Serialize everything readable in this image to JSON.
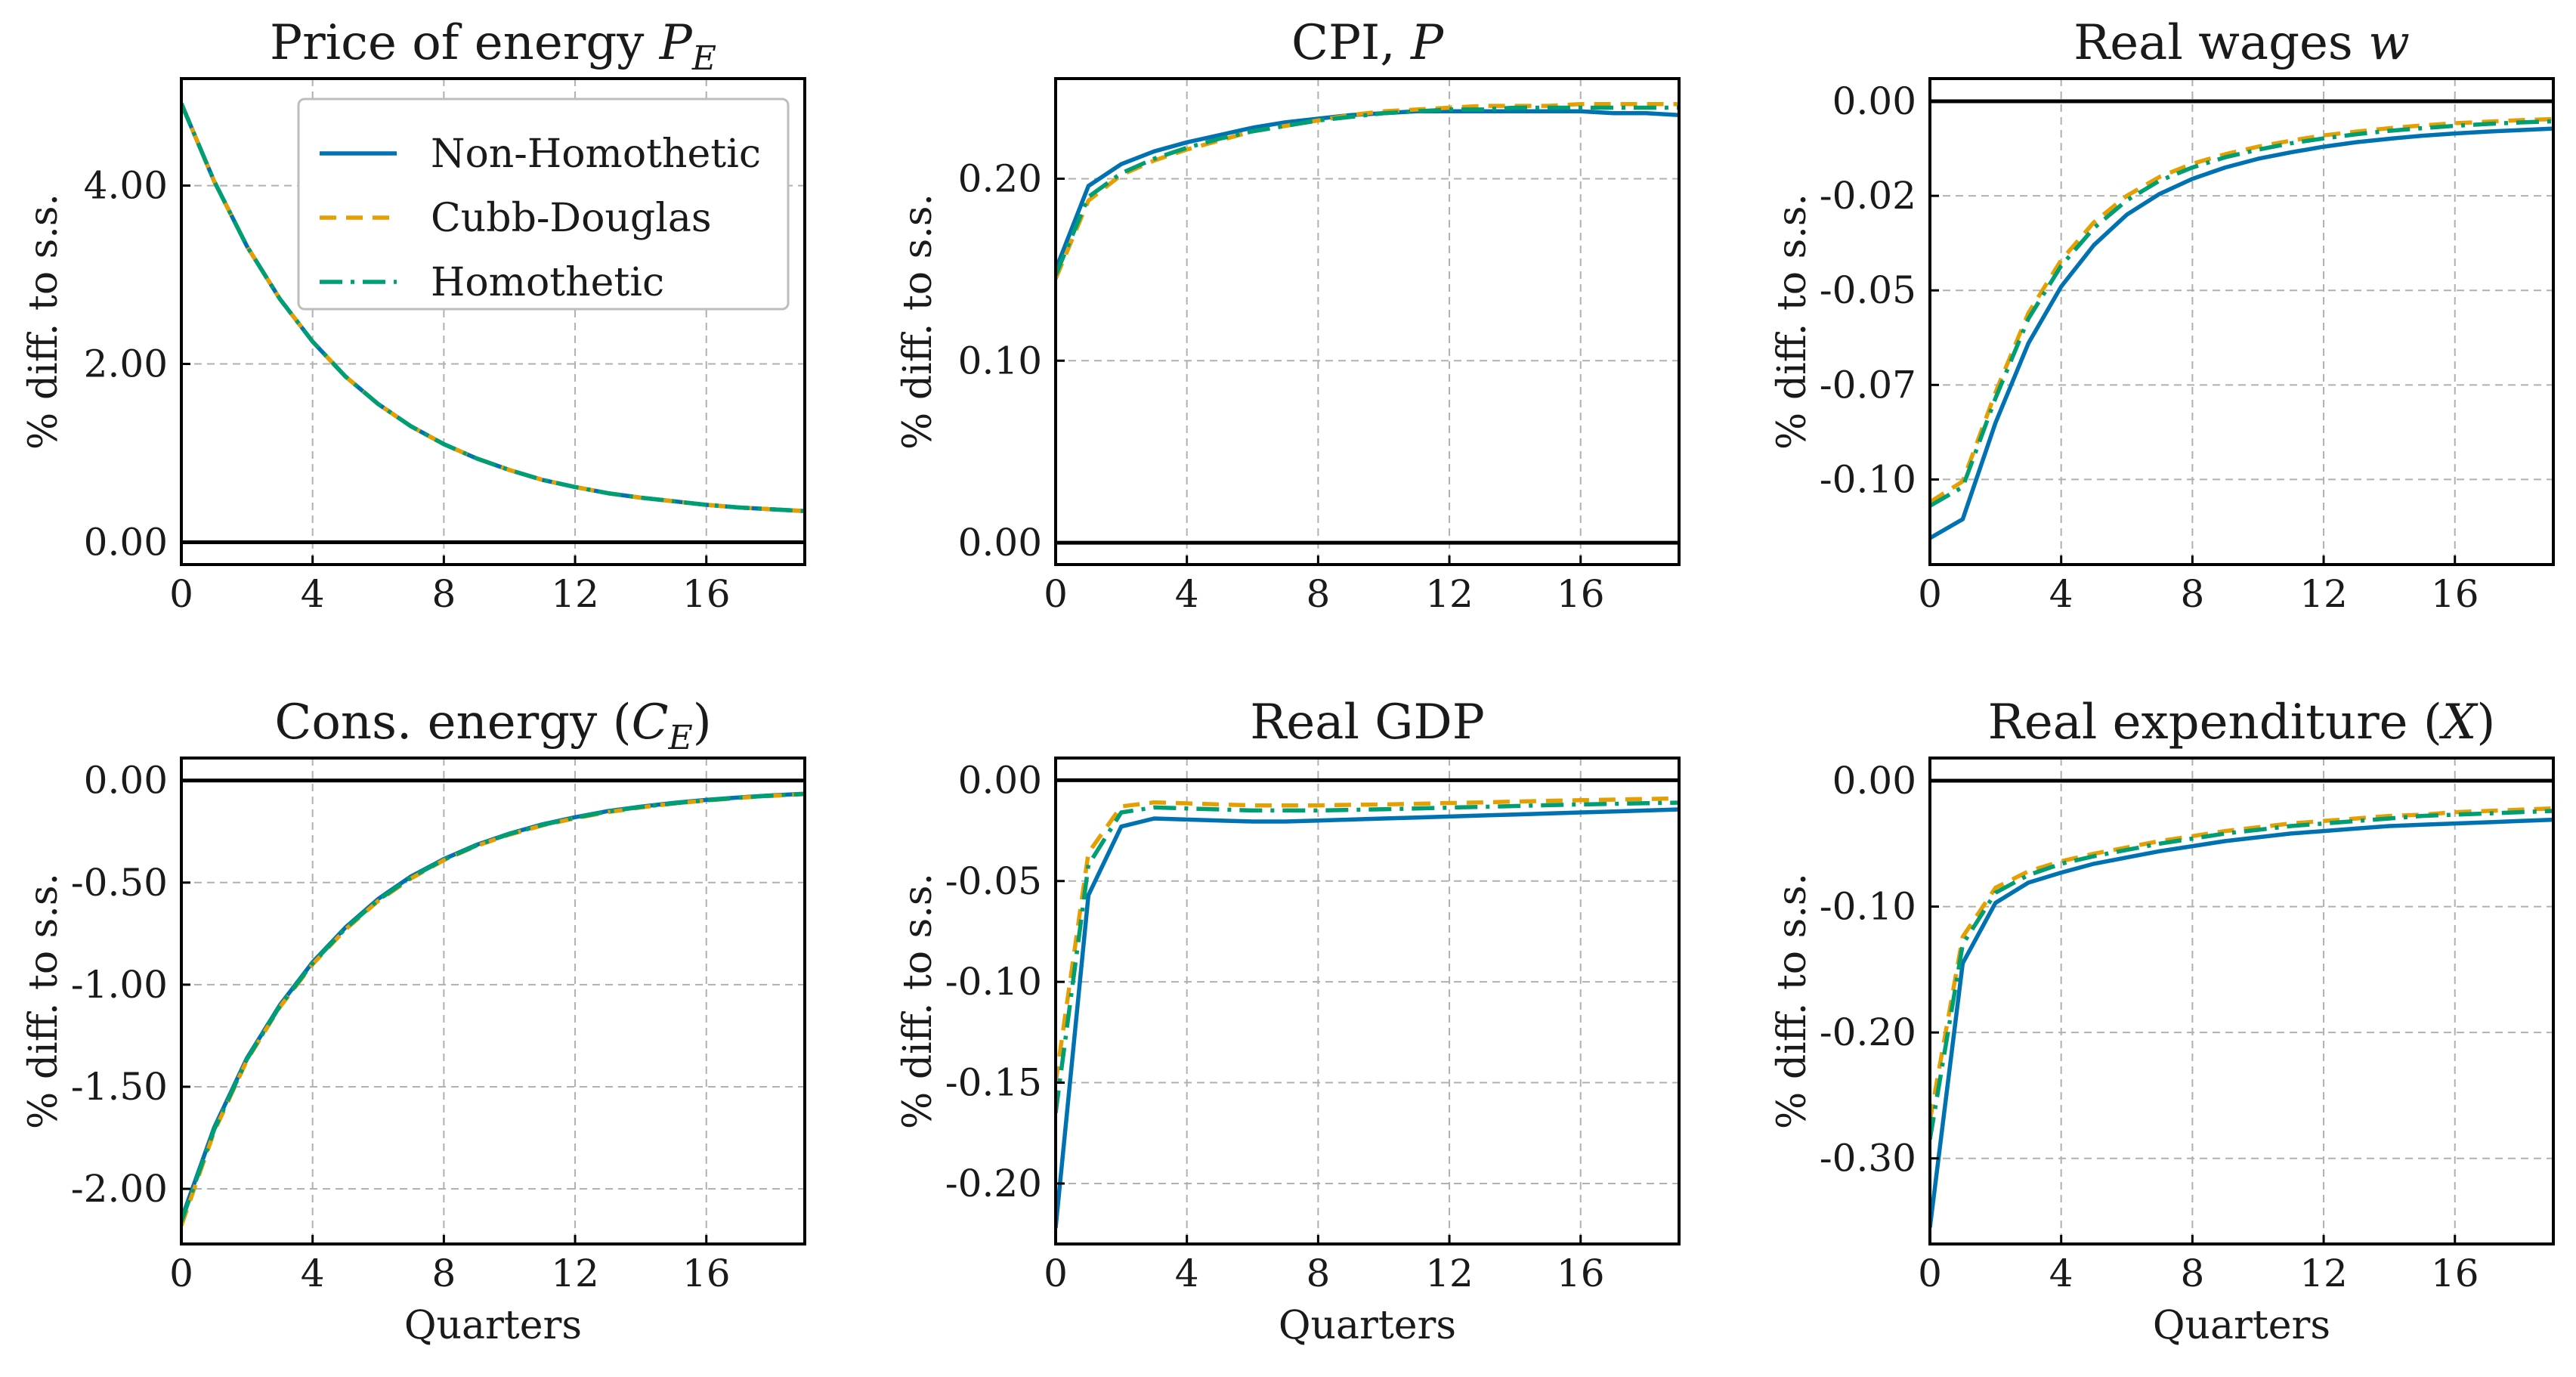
{
  "colors": {
    "non_homothetic": "#0072B2",
    "cobb_douglas": "#E69F00",
    "homothetic": "#009E73",
    "zero_line": "#000000",
    "grid": "#b0b0b0"
  },
  "legend": {
    "placement": "top-right of first panel",
    "entries": [
      {
        "label": "Non-Homothetic",
        "color": "#0072B2",
        "dash": "solid"
      },
      {
        "label": "Cubb-Douglas",
        "color": "#E69F00",
        "dash": "dashed"
      },
      {
        "label": "Homothetic",
        "color": "#009E73",
        "dash": "dashdot"
      }
    ]
  },
  "chart_data": [
    {
      "type": "line",
      "title": "Price of energy ",
      "title_math": "P",
      "title_sub": "E",
      "title_suffix": "",
      "xlabel": "",
      "ylabel": "% diff. to s.s.",
      "xlim": [
        0,
        19
      ],
      "ylim": [
        -0.25,
        5.2
      ],
      "xticks": [
        0,
        4,
        8,
        12,
        16
      ],
      "yticks": [
        0,
        2,
        4
      ],
      "ytick_labels": [
        "0.00",
        "2.00",
        "4.00"
      ],
      "grid": true,
      "zero_line": true,
      "x": [
        0,
        1,
        2,
        3,
        4,
        5,
        6,
        7,
        8,
        9,
        10,
        11,
        12,
        13,
        14,
        15,
        16,
        17,
        18,
        19
      ],
      "series": [
        {
          "name": "Non-Homothetic",
          "values": [
            4.92,
            4.05,
            3.32,
            2.73,
            2.25,
            1.86,
            1.55,
            1.3,
            1.1,
            0.94,
            0.81,
            0.7,
            0.62,
            0.55,
            0.5,
            0.46,
            0.42,
            0.39,
            0.37,
            0.35
          ]
        },
        {
          "name": "Cubb-Douglas",
          "values": [
            4.92,
            4.05,
            3.32,
            2.73,
            2.25,
            1.86,
            1.55,
            1.3,
            1.1,
            0.94,
            0.81,
            0.7,
            0.62,
            0.55,
            0.5,
            0.46,
            0.42,
            0.39,
            0.37,
            0.35
          ]
        },
        {
          "name": "Homothetic",
          "values": [
            4.92,
            4.05,
            3.32,
            2.73,
            2.25,
            1.86,
            1.55,
            1.3,
            1.1,
            0.94,
            0.81,
            0.7,
            0.62,
            0.55,
            0.5,
            0.46,
            0.42,
            0.39,
            0.37,
            0.35
          ]
        }
      ]
    },
    {
      "type": "line",
      "title": "CPI, ",
      "title_math": "P",
      "title_sub": "",
      "title_suffix": "",
      "xlabel": "",
      "ylabel": "% diff. to s.s.",
      "xlim": [
        0,
        19
      ],
      "ylim": [
        -0.012,
        0.255
      ],
      "xticks": [
        0,
        4,
        8,
        12,
        16
      ],
      "yticks": [
        0,
        0.1,
        0.2
      ],
      "ytick_labels": [
        "0.00",
        "0.10",
        "0.20"
      ],
      "grid": true,
      "zero_line": true,
      "x": [
        0,
        1,
        2,
        3,
        4,
        5,
        6,
        7,
        8,
        9,
        10,
        11,
        12,
        13,
        14,
        15,
        16,
        17,
        18,
        19
      ],
      "series": [
        {
          "name": "Non-Homothetic",
          "values": [
            0.15,
            0.196,
            0.208,
            0.215,
            0.22,
            0.224,
            0.228,
            0.231,
            0.233,
            0.235,
            0.236,
            0.237,
            0.237,
            0.237,
            0.237,
            0.237,
            0.237,
            0.236,
            0.236,
            0.235
          ]
        },
        {
          "name": "Cubb-Douglas",
          "values": [
            0.145,
            0.188,
            0.202,
            0.21,
            0.216,
            0.221,
            0.226,
            0.229,
            0.232,
            0.235,
            0.237,
            0.238,
            0.239,
            0.24,
            0.24,
            0.24,
            0.241,
            0.241,
            0.241,
            0.241
          ]
        },
        {
          "name": "Homothetic",
          "values": [
            0.147,
            0.19,
            0.203,
            0.211,
            0.217,
            0.222,
            0.226,
            0.229,
            0.232,
            0.234,
            0.236,
            0.237,
            0.238,
            0.238,
            0.239,
            0.239,
            0.239,
            0.239,
            0.239,
            0.239
          ]
        }
      ]
    },
    {
      "type": "line",
      "title": "Real wages ",
      "title_math": "w",
      "title_sub": "",
      "title_suffix": "",
      "xlabel": "",
      "ylabel": "% diff. to s.s.",
      "xlim": [
        0,
        19
      ],
      "ylim": [
        -0.1225,
        0.006
      ],
      "xticks": [
        0,
        4,
        8,
        12,
        16
      ],
      "yticks": [
        0,
        -0.025,
        -0.05,
        -0.075,
        -0.1
      ],
      "ytick_labels": [
        "0.00",
        "-0.02",
        "-0.05",
        "-0.07",
        "-0.10"
      ],
      "grid": true,
      "zero_line": true,
      "x": [
        0,
        1,
        2,
        3,
        4,
        5,
        6,
        7,
        8,
        9,
        10,
        11,
        12,
        13,
        14,
        15,
        16,
        17,
        18,
        19
      ],
      "series": [
        {
          "name": "Non-Homothetic",
          "values": [
            -0.1155,
            -0.1105,
            -0.085,
            -0.064,
            -0.049,
            -0.038,
            -0.03,
            -0.0245,
            -0.0205,
            -0.0175,
            -0.0152,
            -0.0135,
            -0.012,
            -0.0108,
            -0.0099,
            -0.0091,
            -0.0085,
            -0.008,
            -0.0076,
            -0.0072
          ]
        },
        {
          "name": "Cubb-Douglas",
          "values": [
            -0.106,
            -0.1005,
            -0.077,
            -0.056,
            -0.042,
            -0.032,
            -0.025,
            -0.02,
            -0.0165,
            -0.014,
            -0.012,
            -0.0104,
            -0.009,
            -0.008,
            -0.0071,
            -0.0064,
            -0.0058,
            -0.0054,
            -0.005,
            -0.0047
          ]
        },
        {
          "name": "Homothetic",
          "values": [
            -0.107,
            -0.102,
            -0.0785,
            -0.0575,
            -0.0435,
            -0.0335,
            -0.0262,
            -0.021,
            -0.0175,
            -0.0148,
            -0.0128,
            -0.0111,
            -0.0098,
            -0.0087,
            -0.0078,
            -0.0071,
            -0.0065,
            -0.006,
            -0.0056,
            -0.0053
          ]
        }
      ]
    },
    {
      "type": "line",
      "title": "Cons. energy (",
      "title_math": "C",
      "title_sub": "E",
      "title_suffix": ")",
      "xlabel": "Quarters",
      "ylabel": "% diff. to s.s.",
      "xlim": [
        0,
        19
      ],
      "ylim": [
        -2.27,
        0.11
      ],
      "xticks": [
        0,
        4,
        8,
        12,
        16
      ],
      "yticks": [
        0,
        -0.5,
        -1,
        -1.5,
        -2
      ],
      "ytick_labels": [
        "0.00",
        "-0.50",
        "-1.00",
        "-1.50",
        "-2.00"
      ],
      "grid": true,
      "zero_line": true,
      "x": [
        0,
        1,
        2,
        3,
        4,
        5,
        6,
        7,
        8,
        9,
        10,
        11,
        12,
        13,
        14,
        15,
        16,
        17,
        18,
        19
      ],
      "series": [
        {
          "name": "Non-Homothetic",
          "values": [
            -2.15,
            -1.7,
            -1.36,
            -1.1,
            -0.89,
            -0.72,
            -0.58,
            -0.47,
            -0.385,
            -0.315,
            -0.26,
            -0.215,
            -0.18,
            -0.15,
            -0.128,
            -0.11,
            -0.095,
            -0.083,
            -0.073,
            -0.065
          ]
        },
        {
          "name": "Cubb-Douglas",
          "values": [
            -2.18,
            -1.72,
            -1.37,
            -1.11,
            -0.9,
            -0.73,
            -0.59,
            -0.48,
            -0.39,
            -0.32,
            -0.265,
            -0.22,
            -0.185,
            -0.155,
            -0.132,
            -0.113,
            -0.098,
            -0.085,
            -0.075,
            -0.067
          ]
        },
        {
          "name": "Homothetic",
          "values": [
            -2.16,
            -1.71,
            -1.365,
            -1.105,
            -0.895,
            -0.725,
            -0.585,
            -0.475,
            -0.388,
            -0.318,
            -0.262,
            -0.218,
            -0.182,
            -0.152,
            -0.13,
            -0.112,
            -0.097,
            -0.084,
            -0.074,
            -0.066
          ]
        }
      ]
    },
    {
      "type": "line",
      "title": "Real GDP",
      "title_math": "",
      "title_sub": "",
      "title_suffix": "",
      "xlabel": "Quarters",
      "ylabel": "% diff. to s.s.",
      "xlim": [
        0,
        19
      ],
      "ylim": [
        -0.23,
        0.011
      ],
      "xticks": [
        0,
        4,
        8,
        12,
        16
      ],
      "yticks": [
        0,
        -0.05,
        -0.1,
        -0.15,
        -0.2
      ],
      "ytick_labels": [
        "0.00",
        "-0.05",
        "-0.10",
        "-0.15",
        "-0.20"
      ],
      "grid": true,
      "zero_line": true,
      "x": [
        0,
        1,
        2,
        3,
        4,
        5,
        6,
        7,
        8,
        9,
        10,
        11,
        12,
        13,
        14,
        15,
        16,
        17,
        18,
        19
      ],
      "series": [
        {
          "name": "Non-Homothetic",
          "values": [
            -0.222,
            -0.057,
            -0.023,
            -0.019,
            -0.0195,
            -0.02,
            -0.0205,
            -0.0205,
            -0.02,
            -0.0195,
            -0.019,
            -0.0185,
            -0.018,
            -0.0175,
            -0.017,
            -0.0165,
            -0.016,
            -0.0155,
            -0.015,
            -0.0145
          ]
        },
        {
          "name": "Cubb-Douglas",
          "values": [
            -0.15,
            -0.036,
            -0.013,
            -0.011,
            -0.0115,
            -0.012,
            -0.0125,
            -0.0125,
            -0.0125,
            -0.0122,
            -0.012,
            -0.0117,
            -0.0113,
            -0.011,
            -0.0106,
            -0.0102,
            -0.0099,
            -0.0096,
            -0.0093,
            -0.009
          ]
        },
        {
          "name": "Homothetic",
          "values": [
            -0.165,
            -0.042,
            -0.016,
            -0.0135,
            -0.014,
            -0.0145,
            -0.015,
            -0.015,
            -0.015,
            -0.0147,
            -0.0144,
            -0.014,
            -0.0136,
            -0.0132,
            -0.0128,
            -0.0124,
            -0.012,
            -0.0117,
            -0.0114,
            -0.0111
          ]
        }
      ]
    },
    {
      "type": "line",
      "title": "Real expenditure (",
      "title_math": "X",
      "title_sub": "",
      "title_suffix": ")",
      "xlabel": "Quarters",
      "ylabel": "% diff. to s.s.",
      "xlim": [
        0,
        19
      ],
      "ylim": [
        -0.368,
        0.018
      ],
      "xticks": [
        0,
        4,
        8,
        12,
        16
      ],
      "yticks": [
        0,
        -0.1,
        -0.2,
        -0.3
      ],
      "ytick_labels": [
        "0.00",
        "-0.10",
        "-0.20",
        "-0.30"
      ],
      "grid": true,
      "zero_line": true,
      "x": [
        0,
        1,
        2,
        3,
        4,
        5,
        6,
        7,
        8,
        9,
        10,
        11,
        12,
        13,
        14,
        15,
        16,
        17,
        18,
        19
      ],
      "series": [
        {
          "name": "Non-Homothetic",
          "values": [
            -0.355,
            -0.145,
            -0.097,
            -0.081,
            -0.073,
            -0.066,
            -0.061,
            -0.056,
            -0.052,
            -0.048,
            -0.045,
            -0.042,
            -0.04,
            -0.038,
            -0.036,
            -0.035,
            -0.034,
            -0.033,
            -0.032,
            -0.031
          ]
        },
        {
          "name": "Cubb-Douglas",
          "values": [
            -0.27,
            -0.124,
            -0.085,
            -0.072,
            -0.064,
            -0.058,
            -0.053,
            -0.048,
            -0.044,
            -0.04,
            -0.037,
            -0.034,
            -0.032,
            -0.03,
            -0.028,
            -0.027,
            -0.025,
            -0.024,
            -0.023,
            -0.022
          ]
        },
        {
          "name": "Homothetic",
          "values": [
            -0.285,
            -0.13,
            -0.089,
            -0.075,
            -0.066,
            -0.06,
            -0.055,
            -0.05,
            -0.046,
            -0.042,
            -0.039,
            -0.036,
            -0.034,
            -0.032,
            -0.03,
            -0.028,
            -0.027,
            -0.026,
            -0.025,
            -0.024
          ]
        }
      ]
    }
  ]
}
